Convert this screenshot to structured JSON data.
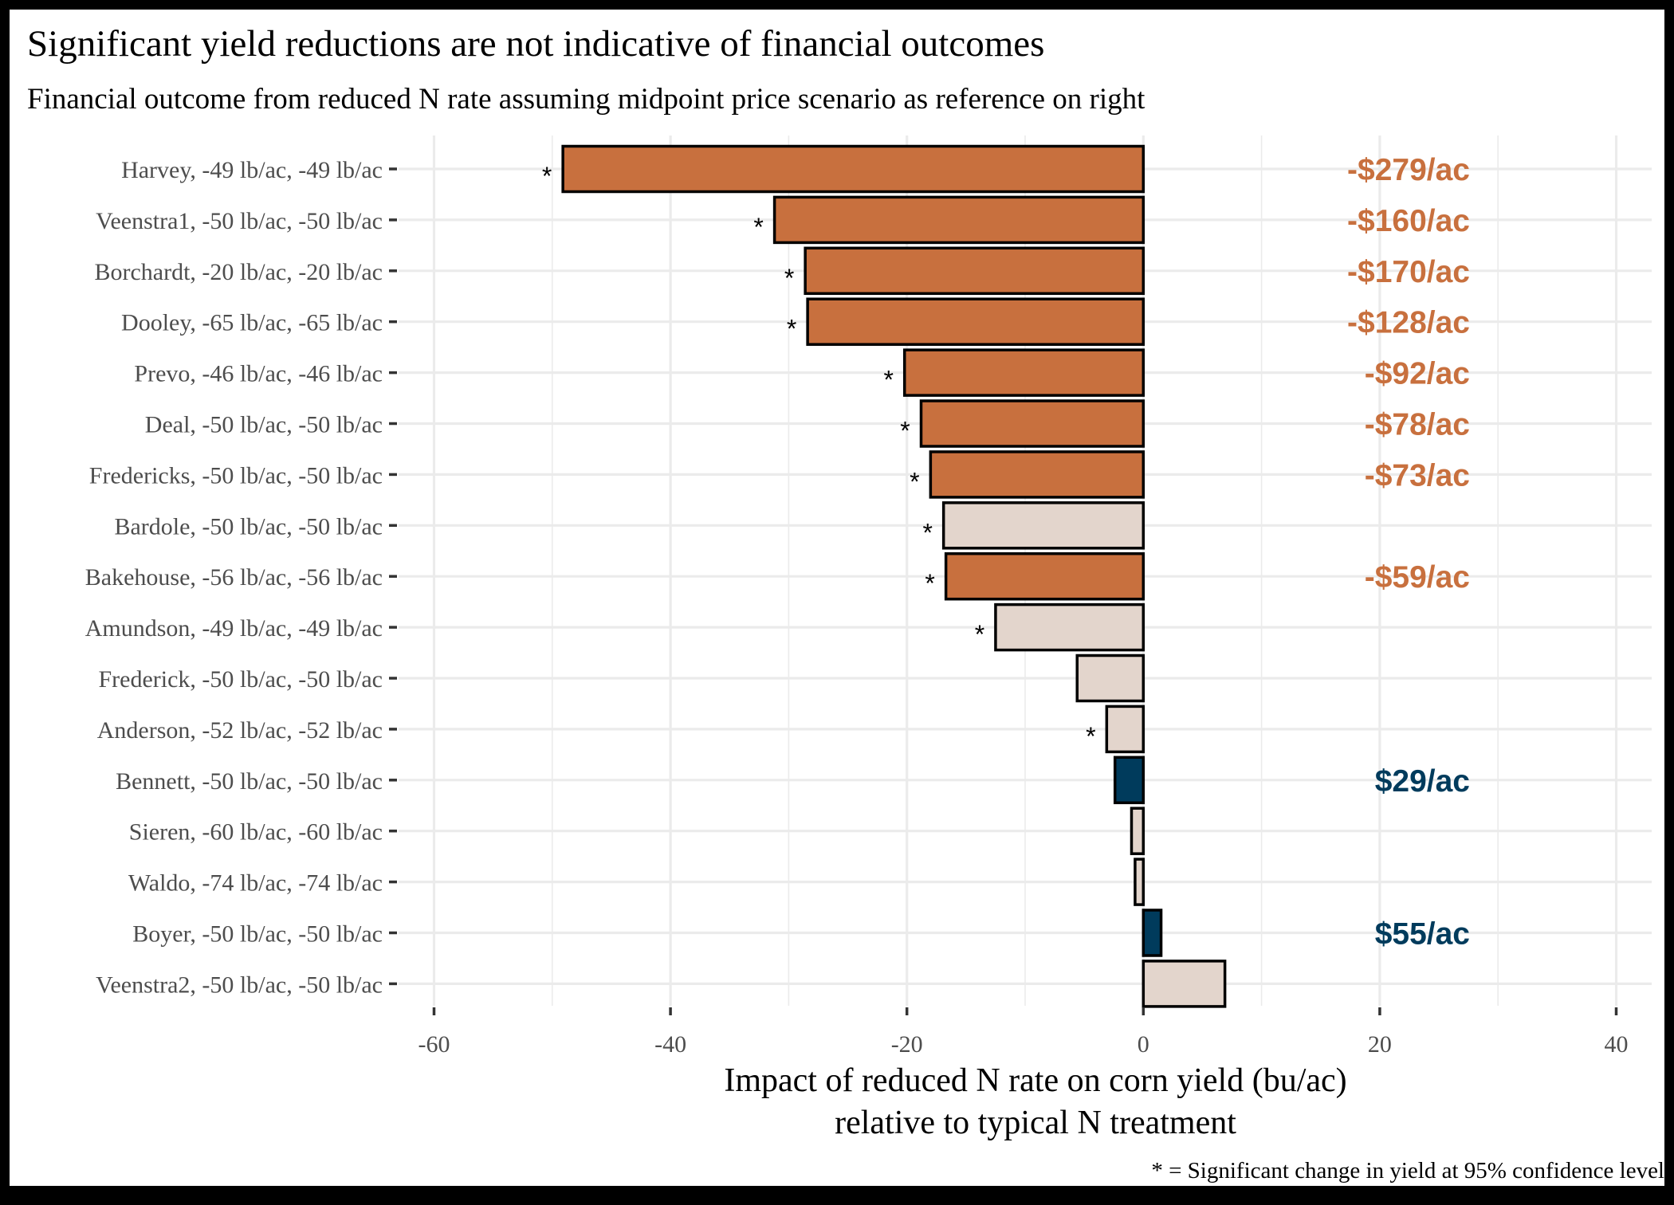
{
  "chart_data": {
    "type": "bar",
    "orientation": "horizontal",
    "title": "Significant yield reductions are not indicative of financial outcomes",
    "subtitle": "Financial outcome from reduced N rate assuming midpoint price scenario as reference on right",
    "xlabel": "Impact of reduced N rate on corn yield (bu/ac)",
    "xlabel_line2": "relative to typical N treatment",
    "caption": "* = Significant change in yield at 95% confidence level",
    "xlim": [
      -63,
      43
    ],
    "xticks": [
      -60,
      -40,
      -20,
      0,
      20,
      40
    ],
    "grid": true,
    "legend": "none",
    "significance_marker": "*",
    "colors": {
      "loss": "#C8703E",
      "gain": "#003B5C",
      "neutral": "#E3D5CC",
      "bar_stroke": "#000000",
      "grid": "#EBEBEB"
    },
    "categories": [
      "Harvey, -49 lb/ac, -49 lb/ac",
      "Veenstra1, -50 lb/ac, -50 lb/ac",
      "Borchardt, -20 lb/ac, -20 lb/ac",
      "Dooley, -65 lb/ac, -65 lb/ac",
      "Prevo, -46 lb/ac, -46 lb/ac",
      "Deal, -50 lb/ac, -50 lb/ac",
      "Fredericks, -50 lb/ac, -50 lb/ac",
      "Bardole, -50 lb/ac, -50 lb/ac",
      "Bakehouse, -56 lb/ac, -56 lb/ac",
      "Amundson, -49 lb/ac, -49 lb/ac",
      "Frederick, -50 lb/ac, -50 lb/ac",
      "Anderson, -52 lb/ac, -52 lb/ac",
      "Bennett, -50 lb/ac, -50 lb/ac",
      "Sieren, -60 lb/ac, -60 lb/ac",
      "Waldo, -74 lb/ac, -74 lb/ac",
      "Boyer, -50 lb/ac, -50 lb/ac",
      "Veenstra2, -50 lb/ac, -50 lb/ac"
    ],
    "values": [
      -49.1,
      -31.2,
      -28.6,
      -28.4,
      -20.2,
      -18.8,
      -18.0,
      -16.9,
      -16.7,
      -12.5,
      -5.6,
      -3.1,
      -2.4,
      -1.0,
      -0.7,
      1.5,
      6.9
    ],
    "significant": [
      true,
      true,
      true,
      true,
      true,
      true,
      true,
      true,
      true,
      true,
      false,
      true,
      false,
      false,
      false,
      false,
      false
    ],
    "outcome": [
      "loss",
      "loss",
      "loss",
      "loss",
      "loss",
      "loss",
      "loss",
      "neutral",
      "loss",
      "neutral",
      "neutral",
      "neutral",
      "gain",
      "neutral",
      "neutral",
      "gain",
      "neutral"
    ],
    "financial_labels": [
      "-$279/ac",
      "-$160/ac",
      "-$170/ac",
      "-$128/ac",
      "-$92/ac",
      "-$78/ac",
      "-$73/ac",
      "",
      "-$59/ac",
      "",
      "",
      "",
      "$29/ac",
      "",
      "",
      "$55/ac",
      ""
    ]
  }
}
